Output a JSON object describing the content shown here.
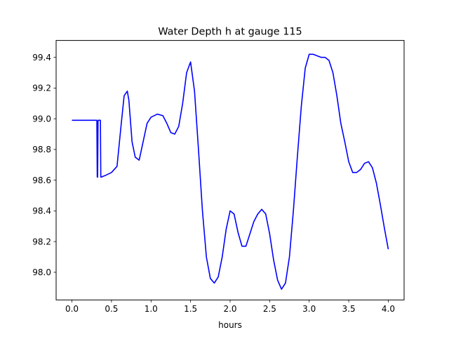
{
  "chart_data": {
    "type": "line",
    "title": "Water Depth h at gauge 115",
    "xlabel": "hours",
    "ylabel": "",
    "xlim": [
      -0.2,
      4.2
    ],
    "ylim": [
      97.82,
      99.51
    ],
    "xticks": [
      0.0,
      0.5,
      1.0,
      1.5,
      2.0,
      2.5,
      3.0,
      3.5,
      4.0
    ],
    "xtick_labels": [
      "0.0",
      "0.5",
      "1.0",
      "1.5",
      "2.0",
      "2.5",
      "3.0",
      "3.5",
      "4.0"
    ],
    "yticks": [
      98.0,
      98.2,
      98.4,
      98.6,
      98.8,
      99.0,
      99.2,
      99.4
    ],
    "ytick_labels": [
      "98.0",
      "98.2",
      "98.4",
      "98.6",
      "98.8",
      "99.0",
      "99.2",
      "99.4"
    ],
    "grid": false,
    "legend": "none",
    "series": [
      {
        "color": "#0000ff",
        "x": [
          0.0,
          0.31,
          0.315,
          0.32,
          0.325,
          0.33,
          0.345,
          0.36,
          0.365,
          0.37,
          0.42,
          0.5,
          0.57,
          0.62,
          0.66,
          0.7,
          0.72,
          0.76,
          0.8,
          0.85,
          0.9,
          0.95,
          1.0,
          1.08,
          1.15,
          1.2,
          1.25,
          1.3,
          1.35,
          1.4,
          1.45,
          1.5,
          1.55,
          1.6,
          1.65,
          1.7,
          1.75,
          1.8,
          1.85,
          1.9,
          1.95,
          2.0,
          2.05,
          2.1,
          2.15,
          2.2,
          2.25,
          2.3,
          2.35,
          2.4,
          2.45,
          2.5,
          2.55,
          2.6,
          2.65,
          2.7,
          2.75,
          2.8,
          2.85,
          2.9,
          2.95,
          3.0,
          3.05,
          3.1,
          3.15,
          3.2,
          3.25,
          3.3,
          3.35,
          3.4,
          3.45,
          3.5,
          3.55,
          3.6,
          3.65,
          3.7,
          3.75,
          3.8,
          3.85,
          3.9,
          3.95,
          4.0
        ],
        "y": [
          98.99,
          98.99,
          98.99,
          98.62,
          98.62,
          98.99,
          98.99,
          98.99,
          98.62,
          98.62,
          98.63,
          98.65,
          98.69,
          98.95,
          99.15,
          99.18,
          99.12,
          98.85,
          98.75,
          98.73,
          98.85,
          98.97,
          99.01,
          99.03,
          99.02,
          98.97,
          98.91,
          98.9,
          98.95,
          99.1,
          99.3,
          99.37,
          99.18,
          98.8,
          98.4,
          98.1,
          97.96,
          97.93,
          97.97,
          98.1,
          98.28,
          98.4,
          98.38,
          98.26,
          98.17,
          98.17,
          98.25,
          98.33,
          98.38,
          98.41,
          98.38,
          98.25,
          98.08,
          97.95,
          97.89,
          97.93,
          98.1,
          98.4,
          98.75,
          99.08,
          99.33,
          99.42,
          99.42,
          99.41,
          99.4,
          99.4,
          99.38,
          99.3,
          99.15,
          98.97,
          98.85,
          98.72,
          98.65,
          98.65,
          98.67,
          98.71,
          98.72,
          98.68,
          98.58,
          98.44,
          98.29,
          98.15
        ]
      }
    ]
  }
}
